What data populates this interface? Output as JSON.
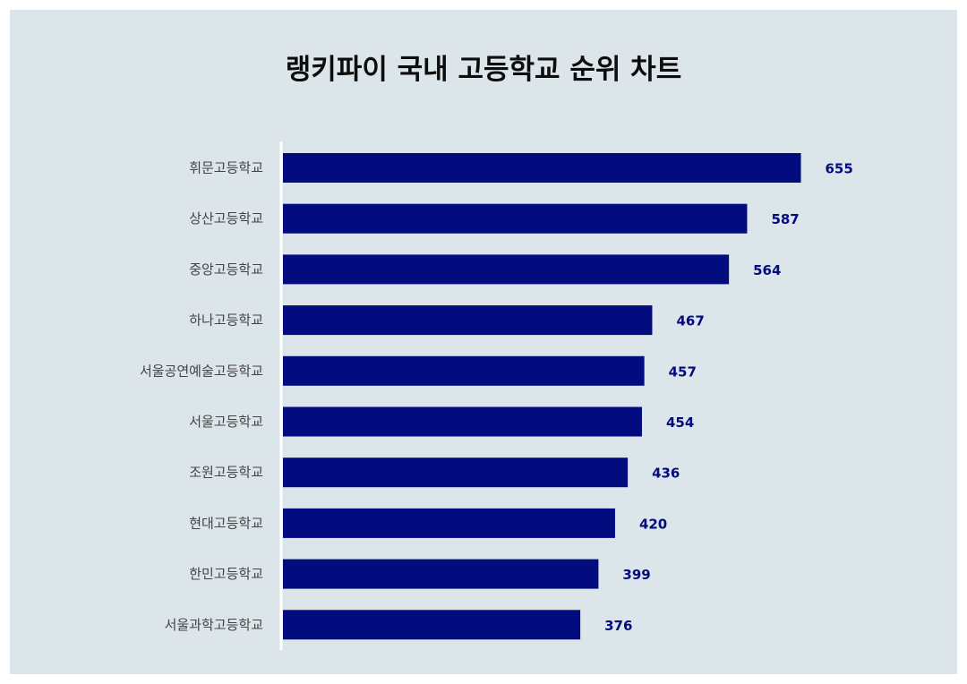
{
  "title": "랭키파이 국내 고등학교 순위 차트",
  "colors": {
    "background": "#dbe5ea",
    "bar": "#020c7e",
    "value_label": "#020c7e",
    "axis_line": "#ffffff"
  },
  "chart_data": {
    "type": "bar",
    "orientation": "horizontal",
    "title": "랭키파이 국내 고등학교 순위 차트",
    "categories": [
      "휘문고등학교",
      "상산고등학교",
      "중앙고등학교",
      "하나고등학교",
      "서울공연예술고등학교",
      "서울고등학교",
      "조원고등학교",
      "현대고등학교",
      "한민고등학교",
      "서울과학고등학교"
    ],
    "values": [
      655,
      587,
      564,
      467,
      457,
      454,
      436,
      420,
      399,
      376
    ],
    "xlim": [
      0,
      700
    ],
    "grid": false,
    "legend": "none",
    "data_labels": true
  }
}
